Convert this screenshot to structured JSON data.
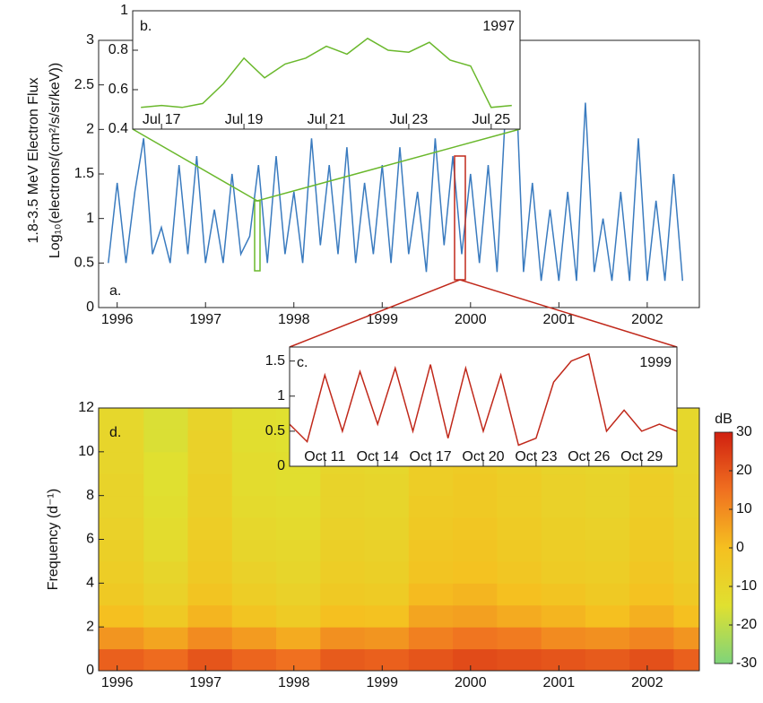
{
  "chart_data": [
    {
      "type": "line",
      "panel_label": "a.",
      "ylabel": "1.8-3.5 MeV Electron Flux",
      "ylabel_units": "Log₁₀(electrons/(cm²/s/sr/keV))",
      "color": "#3a7bbf",
      "xlim": [
        1995.79,
        2002.59
      ],
      "ylim": [
        0,
        3
      ],
      "xticks": [
        1996,
        1997,
        1998,
        1999,
        2000,
        2001,
        2002
      ],
      "yticks": [
        0,
        0.5,
        1,
        1.5,
        2,
        2.5,
        3
      ],
      "x": [
        1995.9,
        1996.0,
        1996.1,
        1996.2,
        1996.3,
        1996.4,
        1996.5,
        1996.6,
        1996.7,
        1996.8,
        1996.9,
        1997.0,
        1997.1,
        1997.2,
        1997.3,
        1997.4,
        1997.5,
        1997.6,
        1997.7,
        1997.8,
        1997.9,
        1998.0,
        1998.1,
        1998.2,
        1998.3,
        1998.4,
        1998.5,
        1998.6,
        1998.7,
        1998.8,
        1998.9,
        1999.0,
        1999.1,
        1999.2,
        1999.3,
        1999.4,
        1999.5,
        1999.6,
        1999.7,
        1999.8,
        1999.9,
        2000.0,
        2000.1,
        2000.2,
        2000.3,
        2000.4,
        2000.5,
        2000.6,
        2000.7,
        2000.8,
        2000.9,
        2001.0,
        2001.1,
        2001.2,
        2001.3,
        2001.4,
        2001.5,
        2001.6,
        2001.7,
        2001.8,
        2001.9,
        2002.0,
        2002.1,
        2002.2,
        2002.3,
        2002.4
      ],
      "values": [
        0.5,
        1.4,
        0.5,
        1.3,
        1.9,
        0.6,
        0.9,
        0.5,
        1.6,
        0.6,
        1.7,
        0.5,
        1.1,
        0.5,
        1.5,
        0.6,
        0.8,
        1.6,
        0.5,
        1.7,
        0.6,
        1.3,
        0.5,
        1.9,
        0.7,
        1.6,
        0.6,
        1.8,
        0.5,
        1.4,
        0.6,
        1.6,
        0.5,
        1.8,
        0.6,
        1.3,
        0.4,
        1.9,
        0.7,
        1.7,
        0.6,
        1.5,
        0.5,
        1.6,
        0.4,
        2.3,
        2.9,
        0.4,
        1.4,
        0.3,
        1.1,
        0.3,
        1.3,
        0.3,
        2.3,
        0.4,
        1.0,
        0.3,
        1.3,
        0.3,
        1.9,
        0.3,
        1.2,
        0.3,
        1.5,
        0.3
      ]
    },
    {
      "type": "line",
      "panel_label": "b.",
      "year_label": "1997",
      "color": "#6ab82c",
      "xlim": [
        16.3,
        25.7
      ],
      "ylim": [
        0.4,
        1
      ],
      "xticks": [
        {
          "value": 17,
          "label": "Jul 17"
        },
        {
          "value": 19,
          "label": "Jul 19"
        },
        {
          "value": 21,
          "label": "Jul 21"
        },
        {
          "value": 23,
          "label": "Jul 23"
        },
        {
          "value": 25,
          "label": "Jul 25"
        }
      ],
      "yticks": [
        0.4,
        0.6,
        0.8,
        1
      ],
      "x": [
        16.5,
        17,
        17.5,
        18,
        18.5,
        19,
        19.5,
        20,
        20.5,
        21,
        21.5,
        22,
        22.5,
        23,
        23.5,
        24,
        24.5,
        25,
        25.5
      ],
      "values": [
        0.51,
        0.52,
        0.51,
        0.53,
        0.63,
        0.76,
        0.66,
        0.73,
        0.76,
        0.82,
        0.78,
        0.86,
        0.8,
        0.79,
        0.84,
        0.75,
        0.72,
        0.51,
        0.52
      ]
    },
    {
      "type": "line",
      "panel_label": "c.",
      "year_label": "1999",
      "color": "#c0281a",
      "xlim": [
        9,
        31
      ],
      "ylim": [
        0,
        1.7
      ],
      "xticks": [
        {
          "value": 11,
          "label": "Oct 11"
        },
        {
          "value": 14,
          "label": "Oct 14"
        },
        {
          "value": 17,
          "label": "Oct 17"
        },
        {
          "value": 20,
          "label": "Oct 20"
        },
        {
          "value": 23,
          "label": "Oct 23"
        },
        {
          "value": 26,
          "label": "Oct 26"
        },
        {
          "value": 29,
          "label": "Oct 29"
        }
      ],
      "yticks": [
        0,
        0.5,
        1,
        1.5
      ],
      "x": [
        9,
        10,
        11,
        12,
        13,
        14,
        15,
        16,
        17,
        18,
        19,
        20,
        21,
        22,
        23,
        24,
        25,
        26,
        27,
        28,
        29,
        30,
        31
      ],
      "values": [
        0.6,
        0.35,
        1.3,
        0.5,
        1.35,
        0.6,
        1.4,
        0.5,
        1.45,
        0.4,
        1.4,
        0.5,
        1.3,
        0.3,
        0.4,
        1.2,
        1.5,
        1.6,
        0.5,
        0.8,
        0.5,
        0.6,
        0.5
      ]
    },
    {
      "type": "heatmap",
      "panel_label": "d.",
      "ylabel": "Frequency (d⁻¹)",
      "colorbar_label": "dB",
      "xlim": [
        1995.79,
        2002.59
      ],
      "ylim": [
        0,
        12
      ],
      "xticks": [
        1996,
        1997,
        1998,
        1999,
        2000,
        2001,
        2002
      ],
      "yticks": [
        0,
        2,
        4,
        6,
        8,
        10,
        12
      ],
      "clim": [
        -30,
        30
      ],
      "cticks": [
        30,
        20,
        10,
        0,
        -10,
        -20,
        -30
      ],
      "x": [
        1995.79,
        1996.3,
        1996.8,
        1997.3,
        1997.8,
        1998.3,
        1998.8,
        1999.3,
        1999.8,
        2000.3,
        2000.8,
        2001.3,
        2001.8,
        2002.3
      ],
      "frequency_bins": [
        0,
        1,
        2,
        3,
        4,
        5,
        6,
        7,
        8,
        9,
        10,
        11,
        12
      ],
      "z": [
        [
          18,
          16,
          20,
          17,
          15,
          19,
          18,
          20,
          22,
          21,
          20,
          19,
          21,
          18
        ],
        [
          8,
          5,
          10,
          7,
          4,
          9,
          8,
          12,
          14,
          13,
          10,
          9,
          11,
          8
        ],
        [
          0,
          -4,
          2,
          -2,
          -5,
          0,
          -1,
          5,
          6,
          4,
          2,
          0,
          3,
          0
        ],
        [
          -4,
          -8,
          -2,
          -6,
          -8,
          -4,
          -5,
          1,
          2,
          0,
          -2,
          -4,
          -1,
          -4
        ],
        [
          -6,
          -10,
          -4,
          -8,
          -10,
          -6,
          -7,
          -2,
          -1,
          -3,
          -5,
          -6,
          -3,
          -6
        ],
        [
          -7,
          -12,
          -5,
          -10,
          -11,
          -7,
          -8,
          -3,
          -2,
          -4,
          -6,
          -7,
          -4,
          -7
        ],
        [
          -8,
          -13,
          -6,
          -11,
          -12,
          -8,
          -9,
          -4,
          -3,
          -5,
          -7,
          -8,
          -5,
          -8
        ],
        [
          -9,
          -14,
          -7,
          -12,
          -13,
          -9,
          -10,
          -5,
          -4,
          -6,
          -8,
          -9,
          -6,
          -9
        ],
        [
          -9,
          -15,
          -7,
          -13,
          -14,
          -9,
          -10,
          -6,
          -4,
          -6,
          -8,
          -9,
          -6,
          -9
        ],
        [
          -10,
          -15,
          -8,
          -13,
          -14,
          -10,
          -11,
          -6,
          -5,
          -7,
          -9,
          -10,
          -7,
          -10
        ],
        [
          -10,
          -16,
          -8,
          -14,
          -15,
          -10,
          -11,
          -7,
          -5,
          -7,
          -9,
          -10,
          -7,
          -10
        ],
        [
          -11,
          -16,
          -9,
          -14,
          -15,
          -11,
          -12,
          -7,
          -6,
          -8,
          -10,
          -11,
          -8,
          -11
        ]
      ]
    }
  ]
}
